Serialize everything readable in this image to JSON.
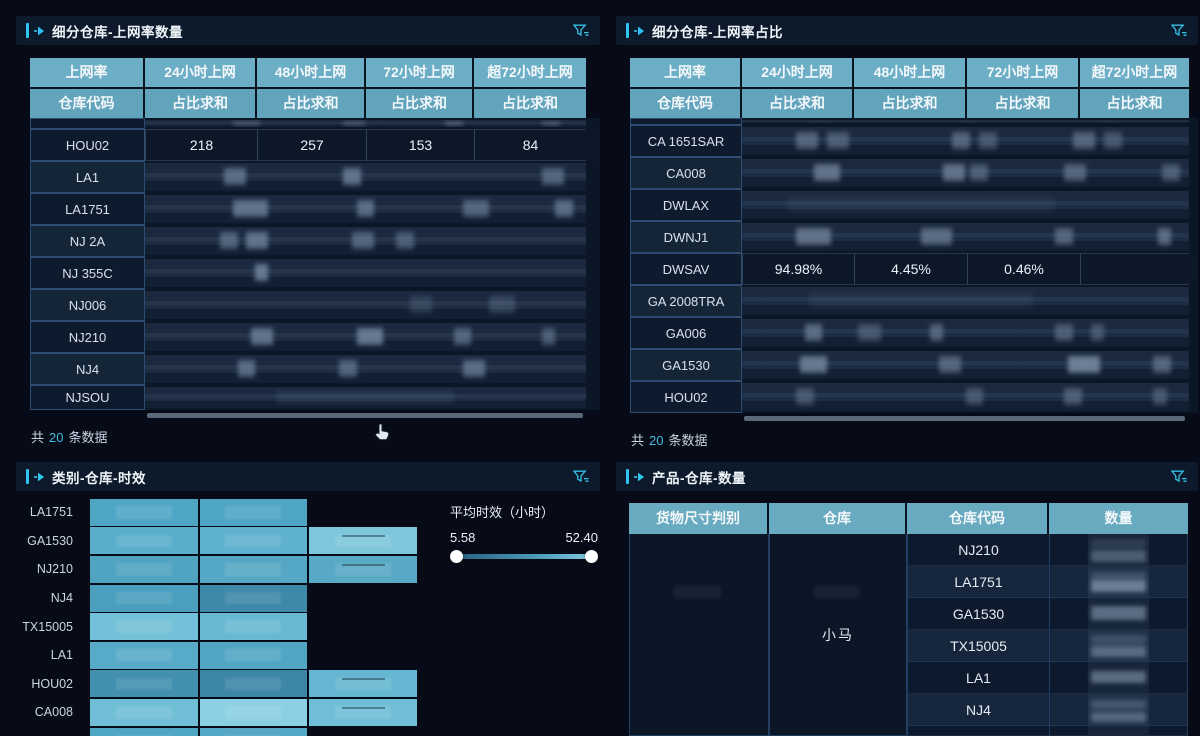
{
  "colors": {
    "accent": "#2ec6f0",
    "header_teal": "#68a9c1",
    "page_bg": "#060b17",
    "title_bg": "#0d1a2c"
  },
  "panels": {
    "net_count": {
      "title": "细分仓库-上网率数量",
      "columns": [
        {
          "top": "上网率",
          "bottom": "仓库代码"
        },
        {
          "top": "24小时上网",
          "bottom": "占比求和"
        },
        {
          "top": "48小时上网",
          "bottom": "占比求和"
        },
        {
          "top": "72小时上网",
          "bottom": "占比求和"
        },
        {
          "top": "超72小时上网",
          "bottom": "占比求和"
        }
      ],
      "rows": [
        {
          "label": "",
          "partial": true,
          "h": 11,
          "redacted": [
            [
              20,
              6,
              0.3
            ],
            [
              45,
              5,
              0.3
            ],
            [
              68,
              4,
              0.35
            ],
            [
              90,
              4,
              0.3
            ]
          ]
        },
        {
          "label": "HOU02",
          "values": [
            "218",
            "257",
            "153",
            "84"
          ]
        },
        {
          "label": "LA1",
          "redacted": [
            [
              18,
              5,
              0.45
            ],
            [
              45,
              4,
              0.5
            ],
            [
              90,
              5,
              0.4
            ]
          ]
        },
        {
          "label": "LA1751",
          "redacted": [
            [
              20,
              8,
              0.5
            ],
            [
              48,
              4,
              0.45
            ],
            [
              72,
              6,
              0.4
            ],
            [
              93,
              4,
              0.45
            ]
          ]
        },
        {
          "label": "NJ 2A",
          "redacted": [
            [
              17,
              4,
              0.4
            ],
            [
              23,
              5,
              0.5
            ],
            [
              47,
              5,
              0.4
            ],
            [
              57,
              4,
              0.35
            ]
          ]
        },
        {
          "label": "NJ 355C",
          "redacted": [
            [
              25,
              3,
              0.55
            ]
          ]
        },
        {
          "label": "NJ006",
          "redacted": [
            [
              60,
              5,
              0.18
            ],
            [
              78,
              6,
              0.22
            ]
          ]
        },
        {
          "label": "NJ210",
          "redacted": [
            [
              24,
              5,
              0.5
            ],
            [
              48,
              6,
              0.55
            ],
            [
              70,
              4,
              0.4
            ],
            [
              90,
              3,
              0.35
            ]
          ]
        },
        {
          "label": "NJ4",
          "redacted": [
            [
              21,
              4,
              0.45
            ],
            [
              44,
              4,
              0.4
            ],
            [
              72,
              5,
              0.45
            ]
          ]
        },
        {
          "label": "NJSOU",
          "h": 25,
          "redacted": [
            [
              30,
              40,
              0.1
            ]
          ]
        }
      ],
      "total": {
        "prefix": "共",
        "count": "20",
        "suffix": "条数据"
      }
    },
    "net_ratio": {
      "title": "细分仓库-上网率占比",
      "columns": [
        {
          "top": "上网率",
          "bottom": "仓库代码"
        },
        {
          "top": "24小时上网",
          "bottom": "占比求和"
        },
        {
          "top": "48小时上网",
          "bottom": "占比求和"
        },
        {
          "top": "72小时上网",
          "bottom": "占比求和"
        },
        {
          "top": "超72小时上网",
          "bottom": "占比求和"
        }
      ],
      "rows": [
        {
          "label": "",
          "partial": true,
          "h": 7,
          "redacted": [
            [
              15,
              5,
              0.25
            ],
            [
              48,
              4,
              0.25
            ],
            [
              80,
              4,
              0.25
            ]
          ]
        },
        {
          "label": "CA 1651SAR",
          "redacted": [
            [
              12,
              5,
              0.4
            ],
            [
              19,
              5,
              0.35
            ],
            [
              47,
              4,
              0.4
            ],
            [
              53,
              4,
              0.3
            ],
            [
              74,
              5,
              0.4
            ],
            [
              81,
              4,
              0.3
            ]
          ]
        },
        {
          "label": "CA008",
          "redacted": [
            [
              16,
              6,
              0.5
            ],
            [
              45,
              5,
              0.5
            ],
            [
              51,
              4,
              0.35
            ],
            [
              72,
              5,
              0.4
            ],
            [
              94,
              4,
              0.35
            ]
          ]
        },
        {
          "label": "DWLAX",
          "redacted": [
            [
              10,
              60,
              0.07
            ]
          ]
        },
        {
          "label": "DWNJ1",
          "redacted": [
            [
              12,
              8,
              0.5
            ],
            [
              40,
              7,
              0.45
            ],
            [
              70,
              4,
              0.4
            ],
            [
              93,
              3,
              0.45
            ]
          ]
        },
        {
          "label": "DWSAV",
          "values": [
            "94.98%",
            "4.45%",
            "0.46%",
            ""
          ]
        },
        {
          "label": "GA 2008TRA",
          "redacted": [
            [
              15,
              50,
              0.07
            ]
          ]
        },
        {
          "label": "GA006",
          "redacted": [
            [
              14,
              4,
              0.45
            ],
            [
              26,
              5,
              0.3
            ],
            [
              42,
              3,
              0.4
            ],
            [
              70,
              4,
              0.35
            ],
            [
              78,
              3,
              0.3
            ]
          ]
        },
        {
          "label": "GA1530",
          "redacted": [
            [
              13,
              6,
              0.55
            ],
            [
              44,
              5,
              0.4
            ],
            [
              73,
              7,
              0.6
            ],
            [
              92,
              4,
              0.4
            ]
          ]
        },
        {
          "label": "HOU02",
          "redacted": [
            [
              12,
              4,
              0.3
            ],
            [
              50,
              4,
              0.3
            ],
            [
              72,
              4,
              0.35
            ],
            [
              92,
              3,
              0.3
            ]
          ]
        }
      ],
      "total": {
        "prefix": "共",
        "count": "20",
        "suffix": "条数据"
      }
    },
    "aging": {
      "title": "类别-仓库-时效",
      "legend": {
        "title": "平均时效（小时）",
        "min": "5.58",
        "max": "52.40"
      },
      "rows": [
        {
          "label": "LA1751",
          "cells": [
            {
              "c": 1,
              "color": "#4fa6c4"
            },
            {
              "c": 2,
              "color": "#4fa6c4"
            }
          ]
        },
        {
          "label": "GA1530",
          "cells": [
            {
              "c": 1,
              "color": "#59aeca"
            },
            {
              "c": 2,
              "color": "#5fb2cd"
            },
            {
              "c": 3,
              "color": "#7dc6db"
            }
          ]
        },
        {
          "label": "NJ210",
          "cells": [
            {
              "c": 1,
              "color": "#4fa4c2"
            },
            {
              "c": 2,
              "color": "#55a8c5"
            },
            {
              "c": 3,
              "color": "#58a9c4"
            }
          ]
        },
        {
          "label": "NJ4",
          "cells": [
            {
              "c": 1,
              "color": "#4a9fbe"
            },
            {
              "c": 2,
              "color": "#3e88a8"
            }
          ]
        },
        {
          "label": "TX15005",
          "cells": [
            {
              "c": 1,
              "color": "#73c1d8"
            },
            {
              "c": 2,
              "color": "#68b9d2"
            }
          ]
        },
        {
          "label": "LA1",
          "cells": [
            {
              "c": 1,
              "color": "#58abc8"
            },
            {
              "c": 2,
              "color": "#52a6c4"
            }
          ]
        },
        {
          "label": "HOU02",
          "cells": [
            {
              "c": 1,
              "color": "#4190ae"
            },
            {
              "c": 2,
              "color": "#3d87a6"
            },
            {
              "c": 3,
              "color": "#65b7d1"
            }
          ]
        },
        {
          "label": "CA008",
          "cells": [
            {
              "c": 1,
              "color": "#70bfd6"
            },
            {
              "c": 2,
              "color": "#8bd0e2"
            },
            {
              "c": 3,
              "color": "#6fbed6"
            }
          ]
        },
        {
          "label": "",
          "partial": true,
          "cells": [
            {
              "c": 1,
              "color": "#4fa6c4"
            },
            {
              "c": 2,
              "color": "#55a8c5"
            }
          ]
        }
      ]
    },
    "product": {
      "title": "产品-仓库-数量",
      "headers": [
        "货物尺寸判别",
        "仓库",
        "仓库代码",
        "数量"
      ],
      "warehouse_value": "小马",
      "rows": [
        {
          "code": "NJ210",
          "qty_blur": [
            [
              15,
              30,
              0.18
            ],
            [
              50,
              40,
              0.4
            ]
          ]
        },
        {
          "code": "LA1751",
          "qty_blur": [
            [
              20,
              25,
              0.25
            ],
            [
              45,
              40,
              0.6
            ]
          ]
        },
        {
          "code": "GA1530",
          "qty_blur": [
            [
              25,
              45,
              0.5
            ]
          ]
        },
        {
          "code": "TX15005",
          "qty_blur": [
            [
              15,
              30,
              0.25
            ],
            [
              50,
              38,
              0.45
            ]
          ]
        },
        {
          "code": "LA1",
          "qty_blur": [
            [
              28,
              40,
              0.5
            ]
          ]
        },
        {
          "code": "NJ4",
          "qty_blur": [
            [
              20,
              28,
              0.3
            ],
            [
              58,
              32,
              0.42
            ]
          ]
        }
      ]
    }
  },
  "chart_data": {
    "type": "heatmap",
    "title": "类别-仓库-时效",
    "rows": [
      "LA1751",
      "GA1530",
      "NJ210",
      "NJ4",
      "TX15005",
      "LA1",
      "HOU02",
      "CA008"
    ],
    "columns": [
      "col1",
      "col2",
      "col3"
    ],
    "legend": {
      "label": "平均时效（小时）",
      "min": 5.58,
      "max": 52.4
    },
    "values_blurred": true,
    "cells_present": [
      [
        1,
        1,
        0
      ],
      [
        1,
        1,
        1
      ],
      [
        1,
        1,
        1
      ],
      [
        1,
        1,
        0
      ],
      [
        1,
        1,
        0
      ],
      [
        1,
        1,
        0
      ],
      [
        1,
        1,
        1
      ],
      [
        1,
        1,
        1
      ]
    ],
    "cell_colors": [
      [
        "#4fa6c4",
        "#4fa6c4",
        null
      ],
      [
        "#59aeca",
        "#5fb2cd",
        "#7dc6db"
      ],
      [
        "#4fa4c2",
        "#55a8c5",
        "#58a9c4"
      ],
      [
        "#4a9fbe",
        "#3e88a8",
        null
      ],
      [
        "#73c1d8",
        "#68b9d2",
        null
      ],
      [
        "#58abc8",
        "#52a6c4",
        null
      ],
      [
        "#4190ae",
        "#3d87a6",
        "#65b7d1"
      ],
      [
        "#70bfd6",
        "#8bd0e2",
        "#6fbed6"
      ]
    ]
  }
}
